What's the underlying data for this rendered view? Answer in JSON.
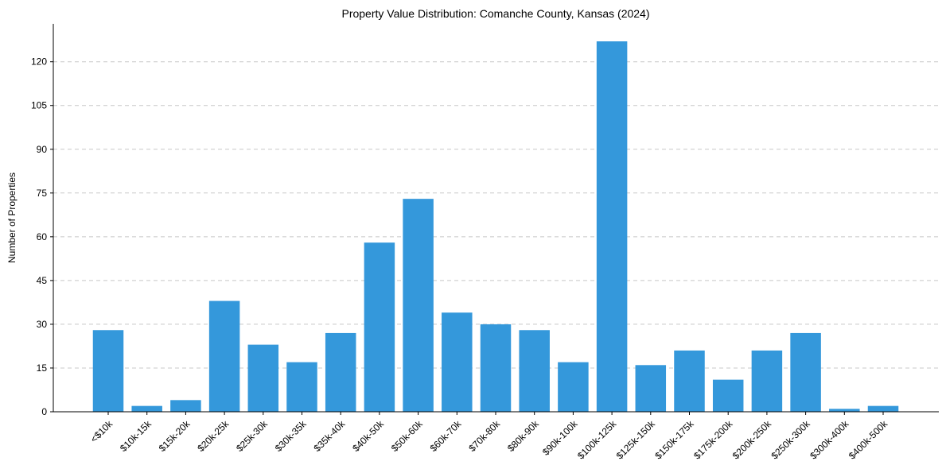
{
  "chart_data": {
    "type": "bar",
    "title": "Property Value Distribution: Comanche County, Kansas (2024)",
    "xlabel": "",
    "ylabel": "Number of Properties",
    "categories": [
      "<$10k",
      "$10k-15k",
      "$15k-20k",
      "$20k-25k",
      "$25k-30k",
      "$30k-35k",
      "$35k-40k",
      "$40k-50k",
      "$50k-60k",
      "$60k-70k",
      "$70k-80k",
      "$80k-90k",
      "$90k-100k",
      "$100k-125k",
      "$125k-150k",
      "$150k-175k",
      "$175k-200k",
      "$200k-250k",
      "$250k-300k",
      "$300k-400k",
      "$400k-500k"
    ],
    "values": [
      28,
      2,
      4,
      38,
      23,
      17,
      27,
      58,
      73,
      34,
      30,
      28,
      17,
      127,
      16,
      21,
      11,
      21,
      27,
      1,
      2
    ],
    "ylim": [
      0,
      133
    ],
    "yticks": [
      0,
      15,
      30,
      45,
      60,
      75,
      90,
      105,
      120
    ],
    "grid": "horizontal dashed",
    "bar_color": "#3498db"
  }
}
